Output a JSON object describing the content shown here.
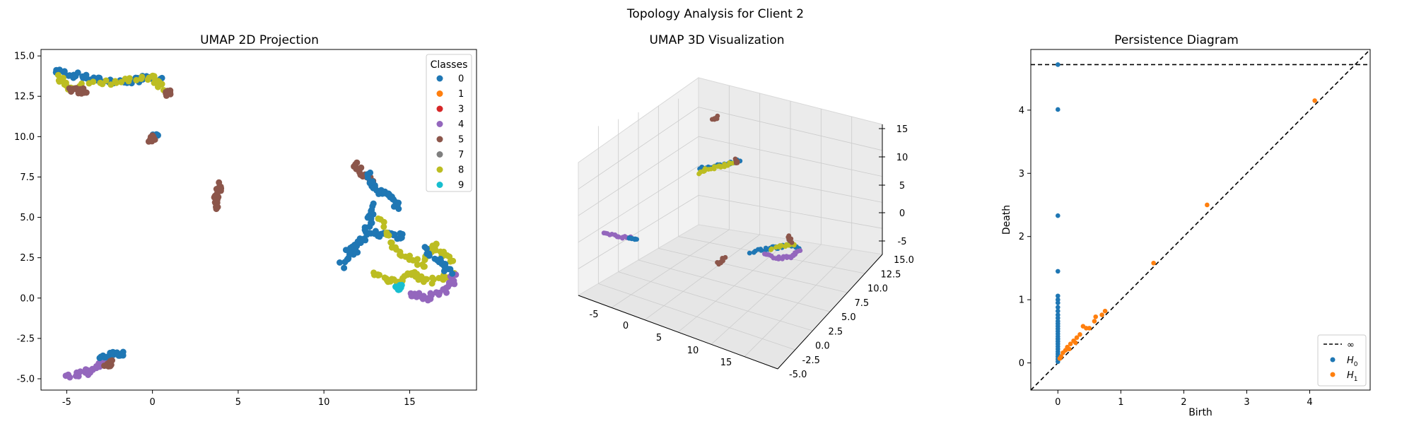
{
  "suptitle": "Topology Analysis for Client 2",
  "colors": {
    "class_0": "#1f77b4",
    "class_1": "#ff7f0e",
    "class_3": "#d62728",
    "class_4": "#9467bd",
    "class_5": "#8c564b",
    "class_7": "#7f7f7f",
    "class_8": "#bcbd22",
    "class_9": "#17becf",
    "h0": "#1f77b4",
    "h1": "#ff7f0e",
    "pane": "#f2f2f2",
    "grid": "#cccccc"
  },
  "chart_data": [
    {
      "type": "scatter",
      "title": "UMAP 2D Projection",
      "xlim": [
        -6.5,
        18.9
      ],
      "ylim": [
        -5.7,
        15.4
      ],
      "xticks": [
        "-5",
        "0",
        "5",
        "10",
        "15"
      ],
      "yticks": [
        "-5.0",
        "-2.5",
        "0.0",
        "2.5",
        "5.0",
        "7.5",
        "10.0",
        "12.5",
        "15.0"
      ],
      "legend": {
        "title": "Classes",
        "placement": "top-right",
        "entries": [
          "0",
          "1",
          "3",
          "4",
          "5",
          "7",
          "8",
          "9"
        ]
      },
      "clusters": [
        {
          "class": "0",
          "path": [
            [
              -5.6,
              14.1
            ],
            [
              -4.5,
              13.8
            ],
            [
              -3,
              13.5
            ],
            [
              -1.5,
              13.4
            ],
            [
              -0.5,
              13.6
            ],
            [
              0.5,
              13.5
            ]
          ]
        },
        {
          "class": "8",
          "path": [
            [
              -5.4,
              13.7
            ],
            [
              -4.8,
              13.1
            ],
            [
              -2,
              13.4
            ],
            [
              0,
              13.6
            ],
            [
              0.6,
              13.0
            ]
          ]
        },
        {
          "class": "5",
          "path": [
            [
              -4.8,
              13.0
            ],
            [
              -4.2,
              12.8
            ],
            [
              -3.9,
              12.9
            ]
          ]
        },
        {
          "class": "5",
          "path": [
            [
              0.8,
              12.8
            ],
            [
              1.0,
              12.6
            ]
          ]
        },
        {
          "class": "0",
          "path": [
            [
              0.1,
              10.1
            ],
            [
              0.2,
              10.0
            ]
          ]
        },
        {
          "class": "5",
          "path": [
            [
              -0.1,
              9.8
            ],
            [
              0.05,
              9.9
            ]
          ]
        },
        {
          "class": "5",
          "path": [
            [
              3.7,
              5.6
            ],
            [
              3.8,
              6.4
            ],
            [
              3.95,
              7.0
            ]
          ]
        },
        {
          "class": "5",
          "path": [
            [
              11.8,
              8.4
            ],
            [
              12.4,
              7.6
            ],
            [
              13.0,
              7.0
            ]
          ]
        },
        {
          "class": "0",
          "path": [
            [
              12.6,
              7.7
            ],
            [
              13.1,
              6.6
            ],
            [
              13.9,
              6.4
            ],
            [
              14.3,
              5.7
            ]
          ]
        },
        {
          "class": "0",
          "path": [
            [
              13.0,
              5.8
            ],
            [
              12.6,
              4.6
            ],
            [
              11.8,
              3.0
            ],
            [
              11.0,
              2.0
            ]
          ]
        },
        {
          "class": "0",
          "path": [
            [
              11.3,
              3.0
            ],
            [
              12.8,
              4.0
            ],
            [
              13.8,
              3.9
            ],
            [
              14.6,
              3.8
            ]
          ]
        },
        {
          "class": "8",
          "path": [
            [
              13.2,
              5.0
            ],
            [
              14.2,
              3.0
            ],
            [
              15.7,
              2.1
            ],
            [
              16.5,
              3.2
            ],
            [
              17.4,
              2.3
            ]
          ]
        },
        {
          "class": "8",
          "path": [
            [
              12.8,
              1.6
            ],
            [
              14.0,
              1.0
            ],
            [
              15.2,
              1.6
            ],
            [
              16.0,
              1.0
            ],
            [
              17.6,
              1.4
            ]
          ]
        },
        {
          "class": "4",
          "path": [
            [
              15.0,
              0.3
            ],
            [
              16.0,
              0.0
            ],
            [
              17.2,
              0.5
            ],
            [
              17.6,
              1.4
            ]
          ]
        },
        {
          "class": "0",
          "path": [
            [
              16.0,
              3.0
            ],
            [
              16.8,
              2.2
            ],
            [
              17.4,
              1.6
            ]
          ]
        },
        {
          "class": "9",
          "path": [
            [
              14.3,
              0.6
            ],
            [
              14.4,
              0.7
            ]
          ]
        },
        {
          "class": "4",
          "path": [
            [
              -4.9,
              -4.8
            ],
            [
              -3.8,
              -4.6
            ],
            [
              -3.0,
              -4.0
            ],
            [
              -2.4,
              -3.7
            ]
          ]
        },
        {
          "class": "0",
          "path": [
            [
              -3.0,
              -3.6
            ],
            [
              -2.2,
              -3.5
            ],
            [
              -1.6,
              -3.4
            ]
          ]
        },
        {
          "class": "5",
          "path": [
            [
              -2.7,
              -4.1
            ],
            [
              -2.4,
              -4.0
            ]
          ]
        }
      ]
    },
    {
      "type": "scatter",
      "title": "UMAP 3D Visualization",
      "xticks": [
        "-5",
        "0",
        "5",
        "10",
        "15"
      ],
      "yticks": [
        "-5.0",
        "-2.5",
        "0.0",
        "2.5",
        "5.0",
        "7.5",
        "10.0",
        "12.5",
        "15.0"
      ],
      "zticks": [
        "-5",
        "0",
        "5",
        "10",
        "15"
      ]
    },
    {
      "type": "scatter",
      "title": "Persistence Diagram",
      "xlabel": "Birth",
      "ylabel": "Death",
      "xlim": [
        -0.43,
        4.96
      ],
      "ylim": [
        -0.43,
        4.96
      ],
      "xticks": [
        "0",
        "1",
        "2",
        "3",
        "4"
      ],
      "yticks": [
        "0",
        "1",
        "2",
        "3",
        "4"
      ],
      "infinity_death": 4.72,
      "legend": {
        "placement": "bottom-right",
        "entries": [
          "∞",
          "H",
          "H"
        ],
        "subscripts": [
          "0",
          "1"
        ]
      },
      "h0_deaths": [
        4.72,
        4.01,
        2.33,
        1.45,
        1.06,
        1.0,
        0.95,
        0.88,
        0.82,
        0.76,
        0.71,
        0.66,
        0.62,
        0.58,
        0.54,
        0.5,
        0.46,
        0.42,
        0.38,
        0.34,
        0.3,
        0.26,
        0.22,
        0.18,
        0.14,
        0.1,
        0.06,
        0.02
      ],
      "h1_points": [
        [
          4.08,
          4.15
        ],
        [
          2.37,
          2.5
        ],
        [
          1.52,
          1.58
        ],
        [
          0.75,
          0.82
        ],
        [
          0.7,
          0.76
        ],
        [
          0.6,
          0.73
        ],
        [
          0.58,
          0.66
        ],
        [
          0.4,
          0.58
        ],
        [
          0.45,
          0.55
        ],
        [
          0.35,
          0.45
        ],
        [
          0.3,
          0.4
        ],
        [
          0.25,
          0.35
        ],
        [
          0.2,
          0.3
        ],
        [
          0.15,
          0.25
        ],
        [
          0.12,
          0.2
        ],
        [
          0.08,
          0.16
        ],
        [
          0.05,
          0.1
        ],
        [
          0.03,
          0.07
        ],
        [
          0.5,
          0.55
        ],
        [
          0.28,
          0.32
        ],
        [
          0.18,
          0.22
        ]
      ]
    }
  ]
}
